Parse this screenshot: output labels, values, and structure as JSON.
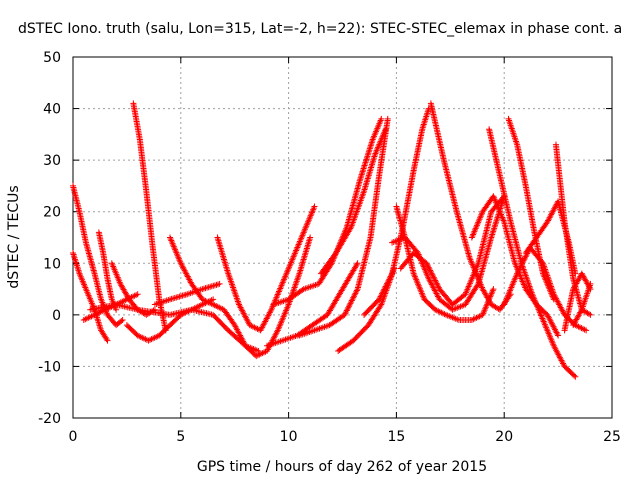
{
  "chart_data": {
    "type": "scatter",
    "title": "dSTEC Iono. truth (salu, Lon=315, Lat=-2, h=22): STEC-STEC_elemax in phase cont. a",
    "xlabel": "GPS time / hours of day 262 of year 2015",
    "ylabel": "dSTEC  / TECUs",
    "xlim": [
      0,
      25
    ],
    "ylim": [
      -20,
      50
    ],
    "xticks": [
      0,
      5,
      10,
      15,
      20,
      25
    ],
    "yticks": [
      -20,
      -10,
      0,
      10,
      20,
      30,
      40,
      50
    ],
    "grid": true,
    "marker": "+",
    "color": "#ff0000",
    "series": [
      {
        "x": [
          0.0,
          0.3,
          0.6,
          1.0,
          1.3,
          1.6,
          2.0,
          2.3
        ],
        "y": [
          25,
          20,
          14,
          8,
          3,
          0,
          -2,
          -1
        ]
      },
      {
        "x": [
          0.0,
          0.3,
          0.6,
          1.0,
          1.3,
          1.6
        ],
        "y": [
          12,
          8,
          5,
          1,
          -3,
          -5
        ]
      },
      {
        "x": [
          0.5,
          1.0,
          1.5,
          2.0,
          2.5,
          3.0
        ],
        "y": [
          -1,
          0,
          1,
          2,
          3,
          4
        ]
      },
      {
        "x": [
          1.2,
          1.4,
          1.6,
          1.8,
          2.0
        ],
        "y": [
          16,
          12,
          7,
          3,
          1
        ]
      },
      {
        "x": [
          1.8,
          2.2,
          2.6,
          3.0,
          3.4,
          3.8
        ],
        "y": [
          10,
          6,
          3,
          1,
          0,
          1
        ]
      },
      {
        "x": [
          2.8,
          3.1,
          3.4,
          3.7,
          4.0,
          4.3
        ],
        "y": [
          41,
          34,
          24,
          13,
          3,
          -3
        ]
      },
      {
        "x": [
          2.5,
          3.0,
          3.5,
          4.0,
          4.5,
          5.0,
          5.5,
          6.0,
          6.5
        ],
        "y": [
          -2,
          -4,
          -5,
          -4,
          -2,
          0,
          1,
          2,
          3
        ]
      },
      {
        "x": [
          0.8,
          2.0,
          3.0,
          4.5,
          5.5,
          6.5,
          7.2,
          8.0,
          8.6
        ],
        "y": [
          1,
          2,
          1,
          0,
          1,
          0,
          -3,
          -6,
          -7
        ]
      },
      {
        "x": [
          4.5,
          5.0,
          5.5,
          6.0,
          6.5,
          7.0,
          7.5,
          8.0,
          8.5,
          9.0,
          9.5,
          10.0,
          10.5,
          11.0
        ],
        "y": [
          15,
          10,
          6,
          3,
          2,
          1,
          -2,
          -6,
          -8,
          -7,
          -3,
          2,
          8,
          15
        ]
      },
      {
        "x": [
          3.8,
          4.5,
          5.3,
          6.0,
          6.8
        ],
        "y": [
          2,
          3,
          4,
          5,
          6
        ]
      },
      {
        "x": [
          6.7,
          7.2,
          7.7,
          8.2,
          8.7,
          9.2,
          9.7,
          10.2,
          10.7,
          11.2
        ],
        "y": [
          15,
          8,
          2,
          -2,
          -3,
          1,
          6,
          11,
          16,
          21
        ]
      },
      {
        "x": [
          9.0,
          9.7,
          10.4,
          11.1,
          11.8,
          12.5,
          13.2
        ],
        "y": [
          -6,
          -5,
          -4,
          -2,
          0,
          5,
          10
        ]
      },
      {
        "x": [
          9.3,
          10.0,
          10.7,
          11.4,
          12.0,
          12.7,
          13.3,
          13.9,
          14.3
        ],
        "y": [
          2,
          3,
          5,
          6,
          10,
          17,
          26,
          34,
          38
        ]
      },
      {
        "x": [
          10.5,
          11.2,
          11.9,
          12.6,
          13.2,
          13.8,
          14.2,
          14.6
        ],
        "y": [
          -4,
          -3,
          -2,
          0,
          5,
          15,
          27,
          38
        ]
      },
      {
        "x": [
          11.5,
          12.2,
          12.9,
          13.5,
          14.0,
          14.5
        ],
        "y": [
          8,
          12,
          17,
          24,
          31,
          36
        ]
      },
      {
        "x": [
          12.3,
          13.0,
          13.7,
          14.3,
          14.9
        ],
        "y": [
          -7,
          -5,
          -2,
          2,
          9
        ]
      },
      {
        "x": [
          15.0,
          15.4,
          15.8,
          16.3,
          16.8,
          17.3,
          17.9,
          18.5,
          19.0,
          19.5
        ],
        "y": [
          21,
          15,
          8,
          3,
          1,
          0,
          -1,
          -1,
          0,
          5
        ]
      },
      {
        "x": [
          13.5,
          14.2,
          14.8,
          15.3,
          15.8,
          16.2,
          16.5
        ],
        "y": [
          0,
          3,
          8,
          17,
          28,
          36,
          40
        ]
      },
      {
        "x": [
          14.8,
          15.4,
          16.0,
          16.5,
          17.0,
          17.6,
          18.2,
          18.8,
          19.4,
          20.0
        ],
        "y": [
          14,
          15,
          12,
          7,
          3,
          1,
          2,
          6,
          15,
          23
        ]
      },
      {
        "x": [
          15.2,
          15.8,
          16.4,
          17.0,
          17.6,
          18.2,
          18.8,
          19.4,
          20.0
        ],
        "y": [
          9,
          12,
          10,
          5,
          2,
          4,
          10,
          20,
          23
        ]
      },
      {
        "x": [
          16.6,
          17.2,
          17.8,
          18.4,
          19.0,
          19.4,
          19.8,
          20.3
        ],
        "y": [
          41,
          30,
          20,
          11,
          5,
          2,
          1,
          4
        ]
      },
      {
        "x": [
          18.5,
          19.0,
          19.5,
          20.0,
          20.5,
          21.0,
          21.5,
          22.0,
          22.5
        ],
        "y": [
          15,
          20,
          23,
          18,
          10,
          5,
          2,
          0,
          -4
        ]
      },
      {
        "x": [
          19.3,
          19.8,
          20.3,
          20.8,
          21.3,
          21.8,
          22.3,
          22.8,
          23.3
        ],
        "y": [
          36,
          27,
          18,
          10,
          4,
          -1,
          -6,
          -10,
          -12
        ]
      },
      {
        "x": [
          20.2,
          20.6,
          21.0,
          21.4,
          21.8,
          22.3
        ],
        "y": [
          38,
          33,
          25,
          16,
          8,
          3
        ]
      },
      {
        "x": [
          20.0,
          20.6,
          21.2,
          21.8,
          22.3,
          22.8,
          23.3,
          23.8
        ],
        "y": [
          2,
          8,
          13,
          10,
          4,
          0,
          -2,
          -3
        ]
      },
      {
        "x": [
          21.0,
          21.5,
          22.0,
          22.5,
          23.0,
          23.3
        ],
        "y": [
          12,
          15,
          18,
          22,
          14,
          8
        ]
      },
      {
        "x": [
          22.4,
          22.8,
          23.2,
          23.6,
          24.0
        ],
        "y": [
          33,
          18,
          7,
          1,
          0
        ]
      },
      {
        "x": [
          22.8,
          23.2,
          23.6,
          24.0
        ],
        "y": [
          -3,
          5,
          8,
          5
        ]
      },
      {
        "x": [
          23.2,
          23.6,
          24.0
        ],
        "y": [
          -2,
          1,
          6
        ]
      }
    ]
  }
}
